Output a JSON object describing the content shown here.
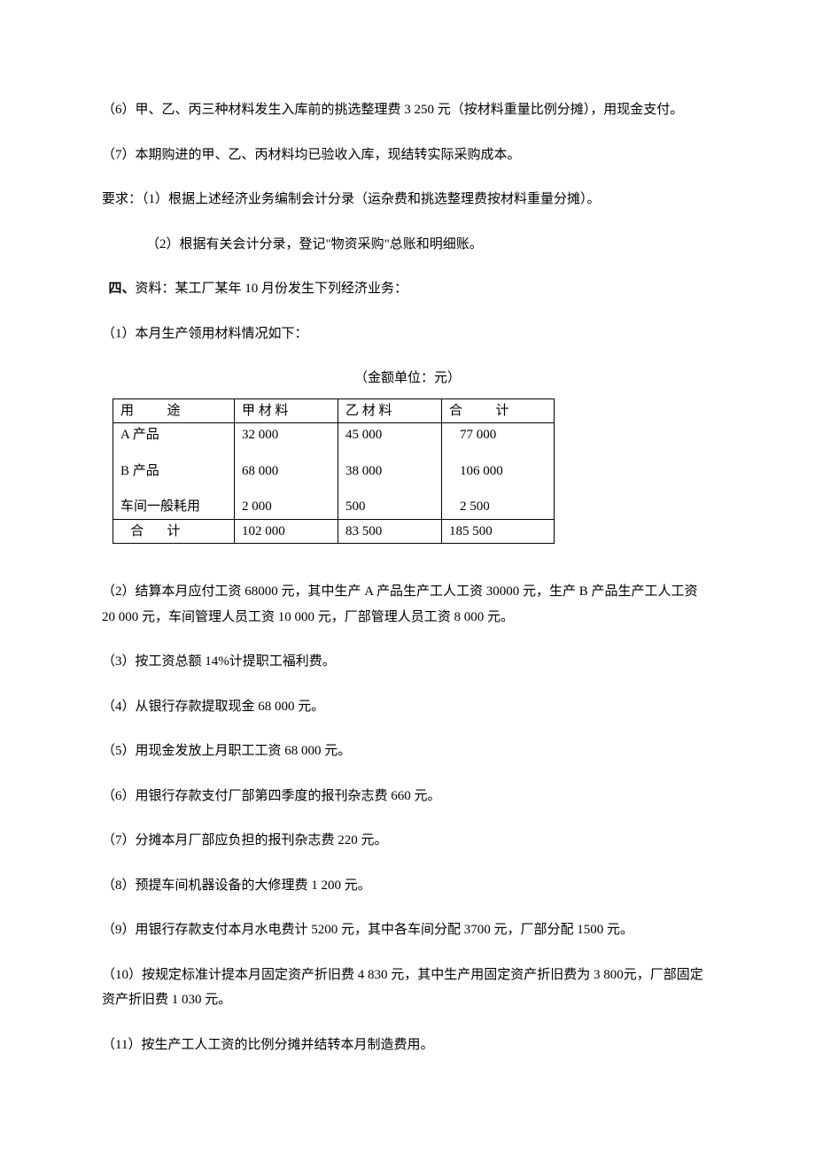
{
  "p6": "（6）甲、乙、丙三种材料发生入库前的挑选整理费 3 250 元（按材料重量比例分摊），用现金支付。",
  "p7": "（7）本期购进的甲、乙、丙材料均已验收入库，现结转实际采购成本。",
  "req": "要求：（1）根据上述经济业务编制会计分录（运杂费和挑选整理费按材料重量分摊）。",
  "req2": "（2）根据有关会计分录，登记\"物资采购\"总账和明细账。",
  "four_bold": "四、",
  "four_rest": "资料：某工厂某年 10 月份发生下列经济业务：",
  "b1": "（1）本月生产领用材料情况如下：",
  "table_caption": "（金额单位：元）",
  "table": {
    "headers": {
      "use_l": "用",
      "use_r": "途",
      "mat_a": "甲 材 料",
      "mat_b": "乙 材 料",
      "total_l": "合",
      "total_r": "计"
    },
    "rows": {
      "r1_label": "A 产品",
      "r1_a": "32 000",
      "r1_b": "45 000",
      "r1_t": "77 000",
      "r2_label": "B 产品",
      "r2_a": "68 000",
      "r2_b": "38 000",
      "r2_t": "106 000",
      "r3_label": "车间一般耗用",
      "r3_a": "2 000",
      "r3_b": "500",
      "r3_t": "2 500",
      "sum_label_l": "合",
      "sum_label_r": "计",
      "sum_a": "102 000",
      "sum_b": "83 500",
      "sum_t": "185 500"
    }
  },
  "b2": "（2）结算本月应付工资 68000 元，其中生产 A 产品生产工人工资 30000 元，生产 B 产品生产工人工资 20 000 元，车间管理人员工资 10 000 元，厂部管理人员工资 8 000 元。",
  "b3": "（3）按工资总额 14%计提职工福利费。",
  "b4": "（4）从银行存款提取现金 68 000 元。",
  "b5": "（5）用现金发放上月职工工资 68 000 元。",
  "b6": "（6）用银行存款支付厂部第四季度的报刊杂志费 660 元。",
  "b7": "（7）分摊本月厂部应负担的报刊杂志费 220 元。",
  "b8": "（8）预提车间机器设备的大修理费 1 200 元。",
  "b9": "（9）用银行存款支付本月水电费计 5200 元，其中各车间分配 3700 元，厂部分配 1500 元。",
  "b10": "（10）按规定标准计提本月固定资产折旧费 4 830 元，其中生产用固定资产折旧费为 3 800元，厂部固定资产折旧费 1 030 元。",
  "b11": "（11）按生产工人工资的比例分摊并结转本月制造费用。"
}
